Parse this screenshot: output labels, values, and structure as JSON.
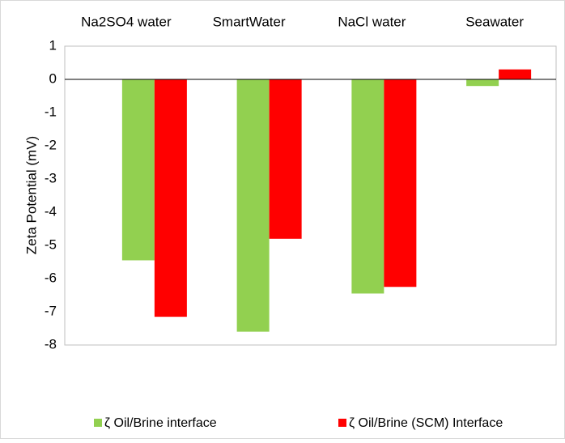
{
  "chart_data": {
    "type": "bar",
    "y_label": "Zeta Potential (mV)",
    "categories": [
      "Na2SO4 water",
      "SmartWater",
      "NaCl water",
      "Seawater"
    ],
    "series": [
      {
        "name": "ζ Oil/Brine interface",
        "color": "#92d050",
        "values": [
          -5.45,
          -7.6,
          -6.45,
          -0.2
        ]
      },
      {
        "name": "ζ Oil/Brine (SCM) Interface",
        "color": "#ff0000",
        "values": [
          -7.15,
          -4.8,
          -6.25,
          0.3
        ]
      }
    ],
    "ylim": [
      -8,
      1
    ],
    "yticks": [
      -8,
      -7,
      -6,
      -5,
      -4,
      -3,
      -2,
      -1,
      0,
      1
    ],
    "grid": false,
    "legend": "bottom"
  }
}
